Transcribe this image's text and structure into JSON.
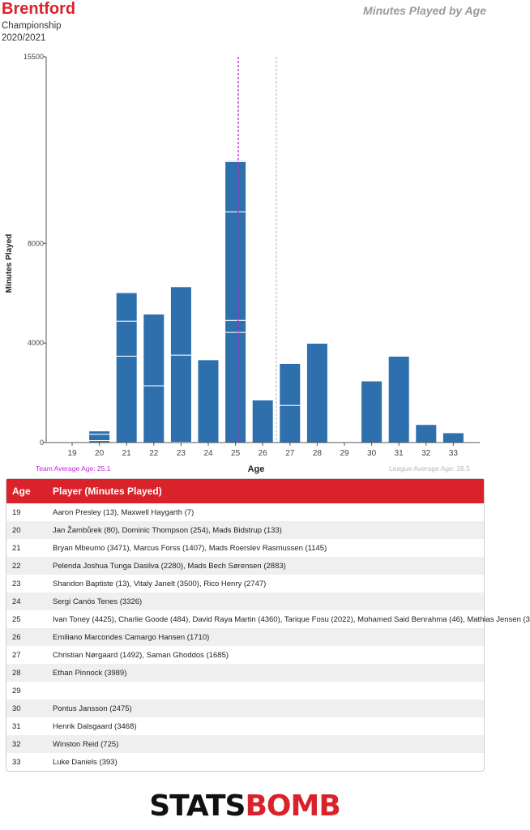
{
  "header": {
    "team": "Brentford",
    "competition": "Championship",
    "season": "2020/2021",
    "chart_title": "Minutes Played by Age"
  },
  "colors": {
    "accent": "#d9222a",
    "bar": "#2e6fad",
    "team_avg_line": "#c026d3"
  },
  "chart_data": {
    "type": "bar",
    "stacked": true,
    "title": "Minutes Played by Age",
    "xlabel": "Age",
    "ylabel": "Minutes Played",
    "categories": [
      "19",
      "20",
      "21",
      "22",
      "23",
      "24",
      "25",
      "26",
      "27",
      "28",
      "29",
      "30",
      "31",
      "32",
      "33"
    ],
    "y_ticks": [
      "0",
      "4000",
      "8000",
      "15500"
    ],
    "ylim": [
      0,
      15500
    ],
    "grid": false,
    "team_average_age": 25.1,
    "league_average_age": 26.5,
    "team_average_label": "Team Average Age: 25.1",
    "league_average_label": "League Average Age: 26.5",
    "stacks": [
      [
        13,
        7
      ],
      [
        80,
        254,
        133
      ],
      [
        3471,
        1407,
        1145
      ],
      [
        2280,
        2883
      ],
      [
        13,
        3500,
        2747
      ],
      [
        3326
      ],
      [
        4425,
        484,
        4360,
        2022,
        46,
        3
      ],
      [
        1710
      ],
      [
        1492,
        1685
      ],
      [
        3989
      ],
      [],
      [
        2475
      ],
      [
        3468
      ],
      [
        725
      ],
      [
        393
      ]
    ]
  },
  "table": {
    "headers": [
      "Age",
      "Player (Minutes Played)"
    ],
    "rows": [
      {
        "age": "19",
        "players": "Aaron Presley (13), Maxwell Haygarth (7)"
      },
      {
        "age": "20",
        "players": "Jan Žambůrek (80), Dominic Thompson (254), Mads Bidstrup (133)"
      },
      {
        "age": "21",
        "players": "Bryan Mbeumo (3471), Marcus Forss (1407), Mads Roerslev Rasmussen (1145)"
      },
      {
        "age": "22",
        "players": "Pelenda Joshua Tunga Dasilva (2280), Mads Bech Sørensen (2883)"
      },
      {
        "age": "23",
        "players": "Shandon Baptiste (13), Vitaly Janelt (3500), Rico Henry (2747)"
      },
      {
        "age": "24",
        "players": "Sergi Canós Tenes (3326)"
      },
      {
        "age": "25",
        "players": "Ivan Toney (4425), Charlie Goode (484), David Raya Martin (4360), Tarique Fosu (2022), Mohamed Said Benrahma (46), Mathias Jensen (3"
      },
      {
        "age": "26",
        "players": "Emiliano Marcondes Camargo Hansen (1710)"
      },
      {
        "age": "27",
        "players": "Christian Nørgaard (1492), Saman Ghoddos (1685)"
      },
      {
        "age": "28",
        "players": "Ethan Pinnock (3989)"
      },
      {
        "age": "29",
        "players": ""
      },
      {
        "age": "30",
        "players": "Pontus Jansson (2475)"
      },
      {
        "age": "31",
        "players": "Henrik Dalsgaard (3468)"
      },
      {
        "age": "32",
        "players": "Winston Reid (725)"
      },
      {
        "age": "33",
        "players": "Luke Daniels (393)"
      }
    ]
  },
  "logo": {
    "part1": "STATS",
    "part2": "BOMB"
  }
}
